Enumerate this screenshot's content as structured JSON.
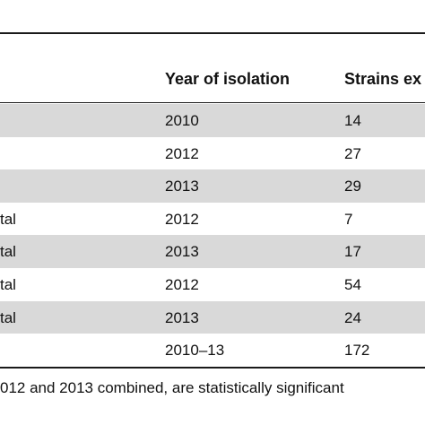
{
  "table": {
    "headers": {
      "source": "",
      "year": "Year of isolation",
      "strains": "Strains ex"
    },
    "rows": [
      {
        "source": "",
        "year": "2010",
        "strains": "14",
        "shaded": true
      },
      {
        "source": "",
        "year": "2012",
        "strains": "27",
        "shaded": false
      },
      {
        "source": "",
        "year": "2013",
        "strains": "29",
        "shaded": true
      },
      {
        "source": "tal",
        "year": "2012",
        "strains": "7",
        "shaded": false
      },
      {
        "source": "tal",
        "year": "2013",
        "strains": "17",
        "shaded": true
      },
      {
        "source": "tal",
        "year": "2012",
        "strains": "54",
        "shaded": false
      },
      {
        "source": "tal",
        "year": "2013",
        "strains": "24",
        "shaded": true
      },
      {
        "source": "",
        "year": "2010–13",
        "strains": "172",
        "shaded": false
      }
    ]
  },
  "footnote": "012 and 2013 combined, are statistically significant"
}
